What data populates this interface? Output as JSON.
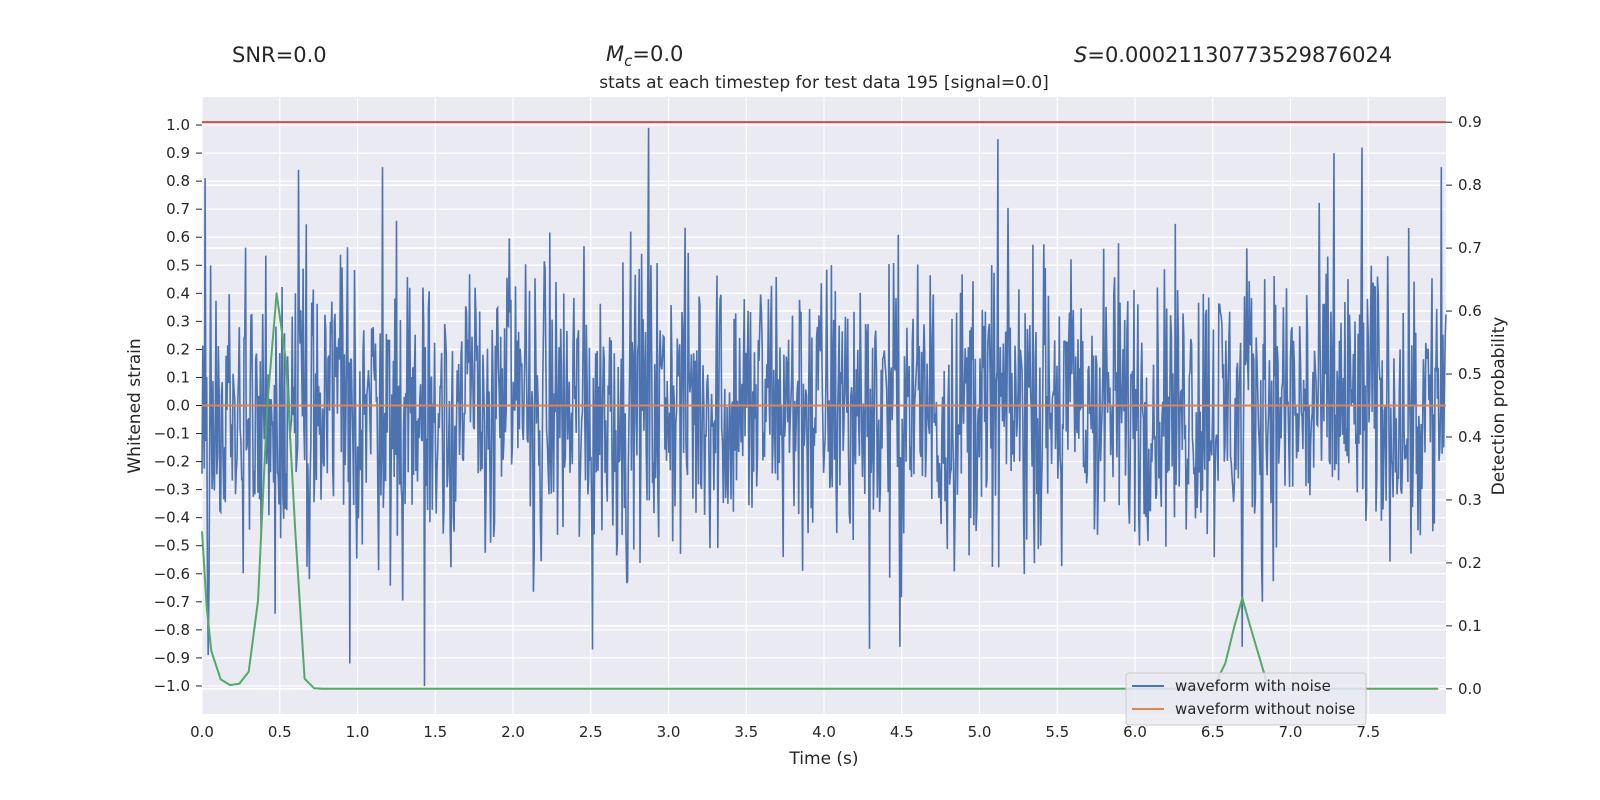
{
  "stats": {
    "snr": "SNR=0.0",
    "mc_symbol": "M",
    "mc_sub": "c",
    "mc_value": "=0.0",
    "s_symbol": "S",
    "s_value": "=0.00021130773529876024"
  },
  "chart_data": {
    "type": "line",
    "title": "stats at each timestep for test data 195 [signal=0.0]",
    "xlabel": "Time (s)",
    "ylabel_left": "Whitened strain",
    "ylabel_right": "Detection probability",
    "xlim": [
      0.0,
      8.0
    ],
    "ylim_left": [
      -1.1,
      1.1
    ],
    "ylim_right": [
      -0.04,
      0.94
    ],
    "x_ticks": [
      "0.0",
      "0.5",
      "1.0",
      "1.5",
      "2.0",
      "2.5",
      "3.0",
      "3.5",
      "4.0",
      "4.5",
      "5.0",
      "5.5",
      "6.0",
      "6.5",
      "7.0",
      "7.5"
    ],
    "y_ticks_left": [
      "1.0",
      "0.9",
      "0.8",
      "0.7",
      "0.6",
      "0.5",
      "0.4",
      "0.3",
      "0.2",
      "0.1",
      "0.0",
      "−0.1",
      "−0.2",
      "−0.3",
      "−0.4",
      "−0.5",
      "−0.6",
      "−0.7",
      "−0.8",
      "−0.9",
      "−1.0"
    ],
    "y_ticks_right": [
      "0.9",
      "0.8",
      "0.7",
      "0.6",
      "0.5",
      "0.4",
      "0.3",
      "0.2",
      "0.1",
      "0.0"
    ],
    "threshold": {
      "value": 0.9,
      "axis": "right",
      "color": "#c44e52"
    },
    "legend": {
      "position": "lower-right",
      "entries": [
        {
          "label": "waveform with noise",
          "color": "#4c72b0"
        },
        {
          "label": "waveform without noise",
          "color": "#dd8452"
        }
      ]
    },
    "series": [
      {
        "name": "waveform with noise",
        "axis": "left",
        "color": "#4c72b0",
        "kind": "noise",
        "sample_count": 1600,
        "typical_range": [
          -0.6,
          0.6
        ],
        "peaks": [
          {
            "x": 2.87,
            "y": 0.99
          },
          {
            "x": 1.43,
            "y": -1.0
          },
          {
            "x": 5.12,
            "y": 0.95
          },
          {
            "x": 7.28,
            "y": 0.9
          },
          {
            "x": 7.46,
            "y": 0.92
          },
          {
            "x": 0.02,
            "y": 0.81
          },
          {
            "x": 0.62,
            "y": 0.84
          },
          {
            "x": 0.04,
            "y": -0.89
          },
          {
            "x": 0.95,
            "y": -0.92
          },
          {
            "x": 4.49,
            "y": -0.86
          },
          {
            "x": 2.51,
            "y": -0.87
          },
          {
            "x": 7.97,
            "y": 0.85
          },
          {
            "x": 1.16,
            "y": 0.85
          },
          {
            "x": 6.69,
            "y": -0.86
          }
        ]
      },
      {
        "name": "waveform without noise",
        "axis": "left",
        "color": "#dd8452",
        "x": [
          0.0,
          8.0
        ],
        "y": [
          0.0,
          0.0
        ]
      },
      {
        "name": "detection probability",
        "axis": "right",
        "color": "#55a868",
        "x": [
          0.0,
          0.03,
          0.06,
          0.12,
          0.18,
          0.24,
          0.3,
          0.36,
          0.42,
          0.48,
          0.54,
          0.6,
          0.66,
          0.72,
          0.78,
          0.84,
          1.0,
          2.0,
          3.0,
          4.0,
          5.0,
          6.0,
          6.4,
          6.5,
          6.58,
          6.64,
          6.69,
          6.74,
          6.8,
          6.86,
          7.0,
          7.5,
          7.95
        ],
        "y": [
          0.25,
          0.13,
          0.06,
          0.015,
          0.006,
          0.008,
          0.027,
          0.14,
          0.45,
          0.628,
          0.52,
          0.25,
          0.016,
          0.001,
          0.0,
          0.0,
          0.0,
          0.0,
          0.0,
          0.0,
          0.0,
          0.0,
          0.0,
          0.0,
          0.04,
          0.1,
          0.144,
          0.1,
          0.05,
          0.0,
          0.0,
          0.0,
          0.0
        ]
      }
    ]
  }
}
